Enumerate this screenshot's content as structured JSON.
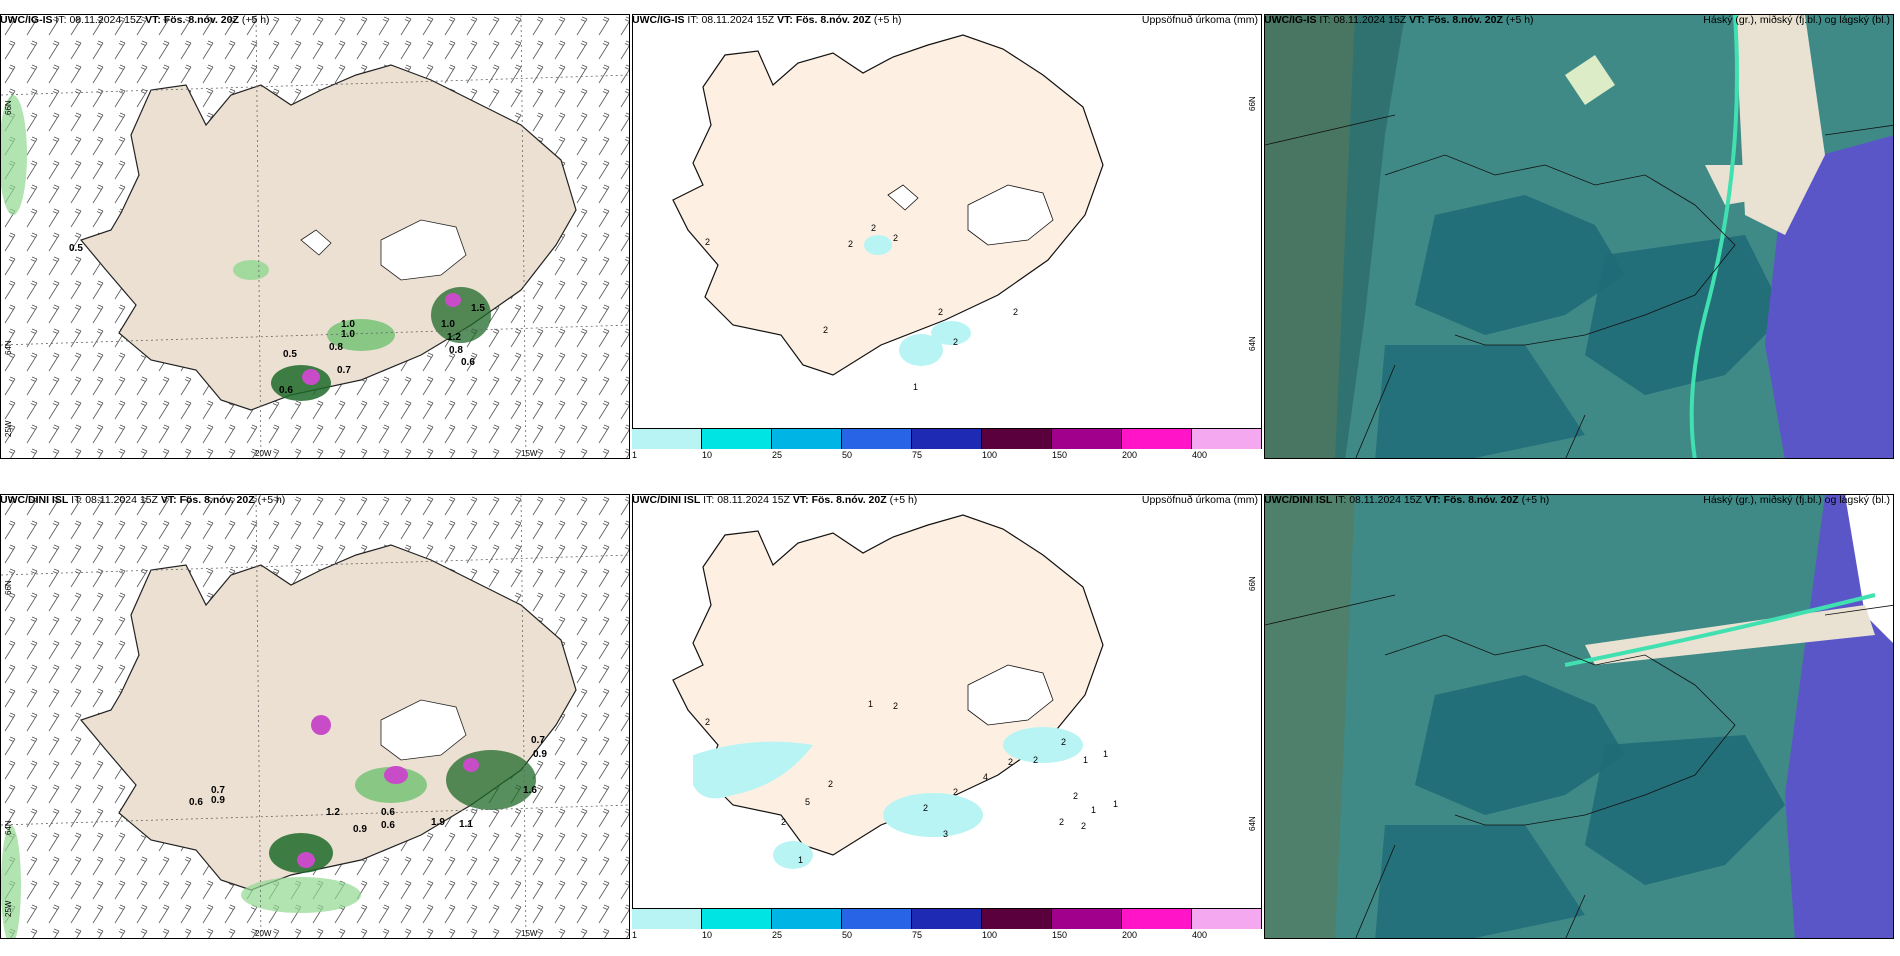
{
  "panels": [
    {
      "model": "UWC/IG-IS",
      "it_label": "IT:",
      "it": "08.11.2024 15Z",
      "vt_label": "VT:",
      "vt": "Fös. 8.nóv. 20Z",
      "lead": "(+5 h)",
      "right_title": ""
    },
    {
      "model": "UWC/IG-IS",
      "it_label": "IT:",
      "it": "08.11.2024 15Z",
      "vt_label": "VT:",
      "vt": "Fös. 8.nóv. 20Z",
      "lead": "(+5 h)",
      "right_title": "Uppsöfnuð úrkoma (mm)"
    },
    {
      "model": "UWC/IG-IS",
      "it_label": "IT:",
      "it": "08.11.2024 15Z",
      "vt_label": "VT:",
      "vt": "Fös. 8.nóv. 20Z",
      "lead": "(+5 h)",
      "right_title": "Háský (gr.), miðský (fj.bl.) og lágský (bl.)"
    },
    {
      "model": "UWC/DINI ISL",
      "it_label": "IT:",
      "it": "08.11.2024 15Z",
      "vt_label": "VT:",
      "vt": "Fös. 8.nóv. 20Z",
      "lead": "(+5 h)",
      "right_title": ""
    },
    {
      "model": "UWC/DINI ISL",
      "it_label": "IT:",
      "it": "08.11.2024 15Z",
      "vt_label": "VT:",
      "vt": "Fös. 8.nóv. 20Z",
      "lead": "(+5 h)",
      "right_title": "Uppsöfnuð úrkoma (mm)"
    },
    {
      "model": "UWC/DINI ISL",
      "it_label": "IT:",
      "it": "08.11.2024 15Z",
      "vt_label": "VT:",
      "vt": "Fös. 8.nóv. 20Z",
      "lead": "(+5 h)",
      "right_title": "Háský (gr.), miðský (fj.bl.) og lágský (bl.)"
    }
  ],
  "axis_labels": {
    "lat66": "66N",
    "lat64": "64N",
    "lon25": "25W",
    "lon20": "20W",
    "lon15": "15W"
  },
  "colorbar": {
    "labels": [
      "1",
      "10",
      "25",
      "50",
      "75",
      "100",
      "150",
      "200",
      "400"
    ],
    "colors": [
      "#b8f4f4",
      "#00e4e4",
      "#00b4e6",
      "#2864e6",
      "#1e2ab4",
      "#5a003c",
      "#a0008c",
      "#ff14c8",
      "#f4a8f0"
    ]
  },
  "precip_labels_top": [
    "0.5",
    "1.0",
    "1.0",
    "0.8",
    "0.5",
    "0.7",
    "0.6",
    "1.5",
    "1.0",
    "1.2",
    "0.8",
    "0.6"
  ],
  "precip_labels_bottom": [
    "0.6",
    "0.7",
    "0.9",
    "1.2",
    "0.9",
    "0.6",
    "0.6",
    "1.9",
    "1.1",
    "1.6",
    "0.7",
    "0.9"
  ],
  "accum_labels_top": [
    "2",
    "2",
    "2",
    "2",
    "2",
    "2",
    "2",
    "2",
    "1"
  ],
  "accum_labels_bottom": [
    "2",
    "1",
    "2",
    "5",
    "2",
    "2",
    "1",
    "2",
    "3",
    "2",
    "4",
    "2",
    "2",
    "2",
    "1",
    "1",
    "2",
    "1",
    "1",
    "2",
    "2"
  ],
  "colors": {
    "land": "#efe4d8",
    "land_accum": "#fdf0e2",
    "green": "#90d890",
    "dark_green": "#125a22",
    "magenta": "#d060d0",
    "cloud_teal": "#3f8a86",
    "cloud_dark": "#1f6a78",
    "cloud_violet": "#5b56c8"
  }
}
